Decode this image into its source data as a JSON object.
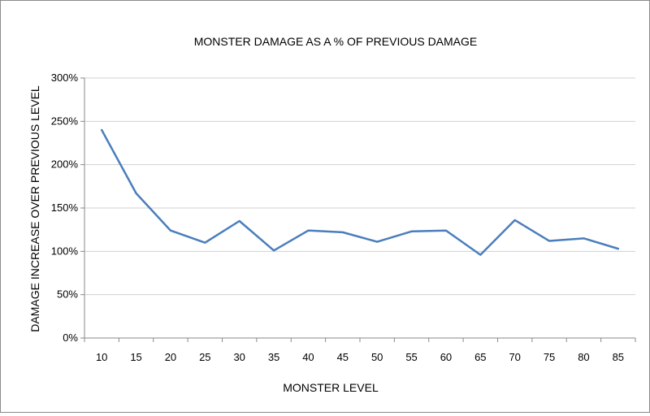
{
  "chart_data": {
    "type": "line",
    "title": "MONSTER DAMAGE AS A % OF PREVIOUS DAMAGE",
    "xlabel": "MONSTER LEVEL",
    "ylabel": "DAMAGE INCREASE OVER PREVIOUS LEVEL",
    "categories": [
      "10",
      "15",
      "20",
      "25",
      "30",
      "35",
      "40",
      "45",
      "50",
      "55",
      "60",
      "65",
      "70",
      "75",
      "80",
      "85"
    ],
    "series": [
      {
        "values": [
          240,
          167,
          124,
          110,
          135,
          101,
          124,
          122,
          111,
          123,
          124,
          96,
          136,
          112,
          115,
          103
        ]
      }
    ],
    "ylim": [
      0,
      300
    ],
    "yticks": [
      0,
      50,
      100,
      150,
      200,
      250,
      300
    ],
    "ytick_labels": [
      "0%",
      "50%",
      "100%",
      "150%",
      "200%",
      "250%",
      "300%"
    ],
    "grid": true,
    "legend": false,
    "colors": {
      "line": "#4a7ebb",
      "grid": "#d0d0d0",
      "axis": "#8a8a8a"
    }
  }
}
